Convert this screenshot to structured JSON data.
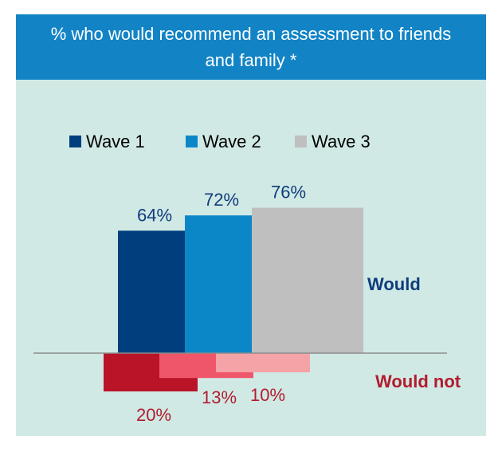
{
  "header": {
    "title": "% who would recommend an assessment to friends and family *"
  },
  "colors": {
    "header_bg": "#1284c6",
    "panel_bg": "#d1e9e5",
    "wave1": "#013e7e",
    "wave2": "#0b87c8",
    "wave3": "#bfbfbf",
    "wave1_neg": "#b91428",
    "wave2_neg": "#f0566a",
    "wave3_neg": "#f4a3a6",
    "would_text": "#0f3c7c",
    "would_not_text": "#b11c2e"
  },
  "chart_data": {
    "type": "bar",
    "title": "% who would recommend an assessment to friends and family *",
    "legend_position": "top",
    "categories": [
      "Would",
      "Would not"
    ],
    "series": [
      {
        "name": "Wave 1",
        "values": [
          64,
          20
        ],
        "labels": [
          "64%",
          "20%"
        ]
      },
      {
        "name": "Wave 2",
        "values": [
          72,
          13
        ],
        "labels": [
          "72%",
          "13%"
        ]
      },
      {
        "name": "Wave 3",
        "values": [
          76,
          10
        ],
        "labels": [
          "76%",
          "10%"
        ]
      }
    ],
    "annotations": {
      "would": "Would",
      "would_not": "Would not"
    },
    "ylim": [
      -20,
      76
    ],
    "grid": false
  }
}
